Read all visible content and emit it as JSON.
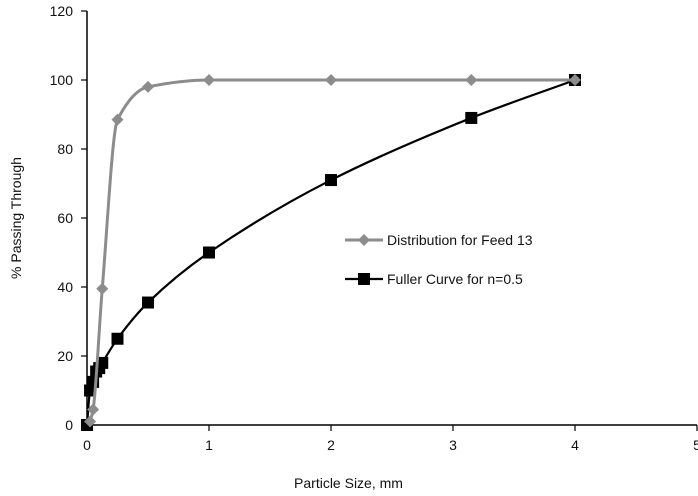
{
  "chart_data": {
    "type": "line",
    "title": "",
    "xlabel": "Particle Size, mm",
    "ylabel": "% Passing Through",
    "xlim": [
      0,
      5
    ],
    "ylim": [
      0,
      120
    ],
    "xticks": [
      "0",
      "1",
      "2",
      "3",
      "4",
      "5"
    ],
    "yticks": [
      "0",
      "20",
      "40",
      "60",
      "80",
      "100",
      "120"
    ],
    "grid": false,
    "legend_position": "center-right",
    "series": [
      {
        "name": "Distribution for Feed 13",
        "color": "#8c8c8c",
        "marker": "diamond",
        "smooth": true,
        "x": [
          0.025,
          0.05,
          0.125,
          0.25,
          0.5,
          1,
          2,
          3.15,
          4
        ],
        "y": [
          1,
          4.5,
          39.5,
          88.5,
          98,
          100,
          100,
          100,
          100
        ]
      },
      {
        "name": "Fuller Curve for n=0.5",
        "color": "#000000",
        "marker": "square",
        "smooth": true,
        "x": [
          0,
          0.025,
          0.05,
          0.075,
          0.1,
          0.125,
          0.25,
          0.5,
          1,
          2,
          3.15,
          4
        ],
        "y": [
          0,
          10,
          12.5,
          15.5,
          16.5,
          18,
          25,
          35.5,
          50,
          71,
          89,
          100
        ]
      }
    ]
  }
}
